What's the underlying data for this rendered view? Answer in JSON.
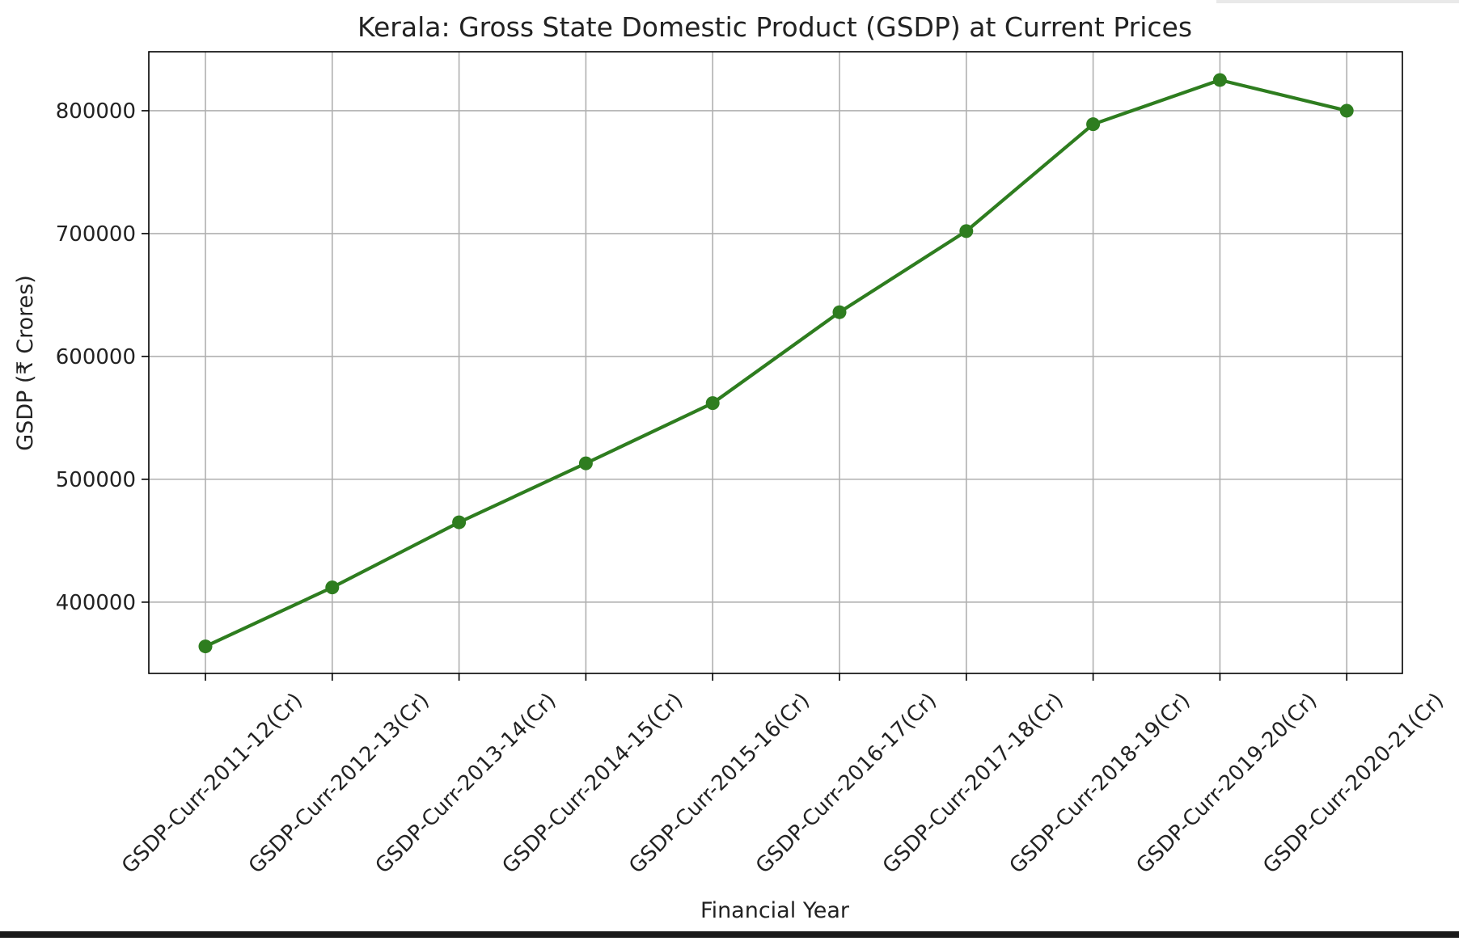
{
  "chart_data": {
    "type": "line",
    "title": "Kerala: Gross State Domestic Product (GSDP) at Current Prices",
    "xlabel": "Financial Year",
    "ylabel": "GSDP (₹ Crores)",
    "categories": [
      "GSDP-Curr-2011-12(Cr)",
      "GSDP-Curr-2012-13(Cr)",
      "GSDP-Curr-2013-14(Cr)",
      "GSDP-Curr-2014-15(Cr)",
      "GSDP-Curr-2015-16(Cr)",
      "GSDP-Curr-2016-17(Cr)",
      "GSDP-Curr-2017-18(Cr)",
      "GSDP-Curr-2018-19(Cr)",
      "GSDP-Curr-2019-20(Cr)",
      "GSDP-Curr-2020-21(Cr)"
    ],
    "values": [
      364000,
      412000,
      465000,
      513000,
      562000,
      636000,
      702000,
      789000,
      825000,
      800000
    ],
    "ylim": [
      342000,
      848000
    ],
    "yticks": [
      400000,
      500000,
      600000,
      700000,
      800000
    ],
    "ytick_labels": [
      "400000",
      "500000",
      "600000",
      "700000",
      "800000"
    ],
    "grid": true,
    "line_color": "#2e7d1f",
    "marker": "circle"
  }
}
